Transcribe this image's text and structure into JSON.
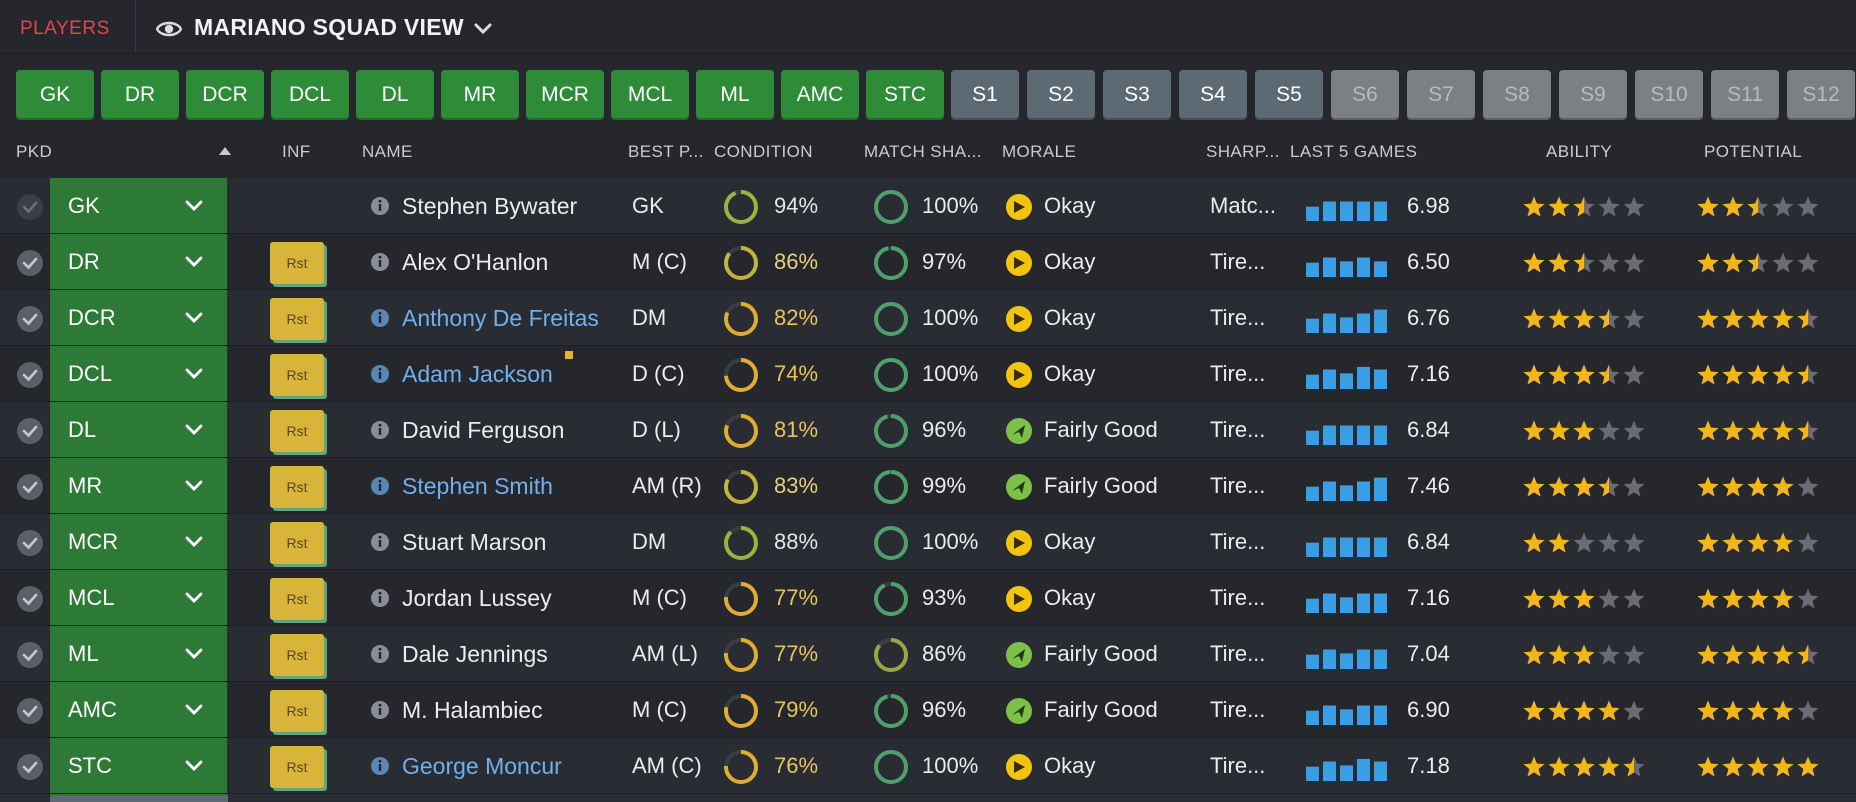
{
  "header": {
    "section": "PLAYERS",
    "view_title": "MARIANO SQUAD VIEW"
  },
  "position_buttons": [
    {
      "label": "GK",
      "state": "active"
    },
    {
      "label": "DR",
      "state": "active"
    },
    {
      "label": "DCR",
      "state": "active"
    },
    {
      "label": "DCL",
      "state": "active"
    },
    {
      "label": "DL",
      "state": "active"
    },
    {
      "label": "MR",
      "state": "active"
    },
    {
      "label": "MCR",
      "state": "active"
    },
    {
      "label": "MCL",
      "state": "active"
    },
    {
      "label": "ML",
      "state": "active"
    },
    {
      "label": "AMC",
      "state": "active"
    },
    {
      "label": "STC",
      "state": "active"
    },
    {
      "label": "S1",
      "state": "sub"
    },
    {
      "label": "S2",
      "state": "sub"
    },
    {
      "label": "S3",
      "state": "sub"
    },
    {
      "label": "S4",
      "state": "sub"
    },
    {
      "label": "S5",
      "state": "sub"
    },
    {
      "label": "S6",
      "state": "empty"
    },
    {
      "label": "S7",
      "state": "empty"
    },
    {
      "label": "S8",
      "state": "empty"
    },
    {
      "label": "S9",
      "state": "empty"
    },
    {
      "label": "S10",
      "state": "empty"
    },
    {
      "label": "S11",
      "state": "empty"
    },
    {
      "label": "S12",
      "state": "empty"
    }
  ],
  "columns": {
    "pkd": "PKD",
    "inf": "INF",
    "name": "NAME",
    "best_pos": "BEST P...",
    "condition": "CONDITION",
    "match_sharpness": "MATCH SHA...",
    "morale": "MORALE",
    "sharpness": "SHARP...",
    "last5": "LAST 5 GAMES",
    "ability": "ABILITY",
    "potential": "POTENTIAL"
  },
  "colors": {
    "accent_red": "#e0474c",
    "position_green": "#2e8c39",
    "sub_grey": "#5d6a74",
    "link_blue": "#6fb0ee",
    "star_gold": "#f3b51c",
    "bar_blue": "#3a9ee4"
  },
  "players": [
    {
      "pos": "GK",
      "inf": "",
      "name": "Stephen Bywater",
      "link": false,
      "best": "GK",
      "cond": "94%",
      "cond_val": 94,
      "ms": "100%",
      "ms_val": 100,
      "morale": "Okay",
      "morale_icon": "okay",
      "sharp": "Matc...",
      "bars": [
        0.55,
        0.75,
        0.75,
        0.75,
        0.75
      ],
      "rating": "6.98",
      "ability": 2.5,
      "potential": 2.5,
      "picked": false
    },
    {
      "pos": "DR",
      "inf": "Rst",
      "name": "Alex O'Hanlon",
      "link": false,
      "best": "M (C)",
      "cond": "86%",
      "cond_val": 86,
      "ms": "97%",
      "ms_val": 97,
      "morale": "Okay",
      "morale_icon": "okay",
      "sharp": "Tire...",
      "bars": [
        0.55,
        0.75,
        0.6,
        0.75,
        0.6
      ],
      "rating": "6.50",
      "ability": 2.5,
      "potential": 2.5,
      "picked": true
    },
    {
      "pos": "DCR",
      "inf": "Rst",
      "name": "Anthony De Freitas",
      "link": true,
      "best": "DM",
      "cond": "82%",
      "cond_val": 82,
      "ms": "100%",
      "ms_val": 100,
      "morale": "Okay",
      "morale_icon": "okay",
      "sharp": "Tire...",
      "bars": [
        0.55,
        0.75,
        0.6,
        0.75,
        0.9
      ],
      "rating": "6.76",
      "ability": 3.5,
      "potential": 4.5,
      "picked": true
    },
    {
      "pos": "DCL",
      "inf": "Rst",
      "name": "Adam Jackson",
      "link": true,
      "best": "D (C)",
      "cond": "74%",
      "cond_val": 74,
      "ms": "100%",
      "ms_val": 100,
      "morale": "Okay",
      "morale_icon": "okay",
      "sharp": "Tire...",
      "bars": [
        0.55,
        0.75,
        0.6,
        0.85,
        0.75
      ],
      "rating": "7.16",
      "ability": 3.5,
      "potential": 4.5,
      "picked": true
    },
    {
      "pos": "DL",
      "inf": "Rst",
      "name": "David Ferguson",
      "link": false,
      "best": "D (L)",
      "cond": "81%",
      "cond_val": 81,
      "ms": "96%",
      "ms_val": 96,
      "morale": "Fairly Good",
      "morale_icon": "fairly-good",
      "sharp": "Tire...",
      "bars": [
        0.55,
        0.75,
        0.75,
        0.75,
        0.75
      ],
      "rating": "6.84",
      "ability": 3,
      "potential": 4.5,
      "picked": true
    },
    {
      "pos": "MR",
      "inf": "Rst",
      "name": "Stephen Smith",
      "link": true,
      "best": "AM (R)",
      "cond": "83%",
      "cond_val": 83,
      "ms": "99%",
      "ms_val": 99,
      "morale": "Fairly Good",
      "morale_icon": "fairly-good",
      "sharp": "Tire...",
      "bars": [
        0.55,
        0.75,
        0.6,
        0.75,
        0.9
      ],
      "rating": "7.46",
      "ability": 3.5,
      "potential": 4,
      "picked": true
    },
    {
      "pos": "MCR",
      "inf": "Rst",
      "name": "Stuart Marson",
      "link": false,
      "best": "DM",
      "cond": "88%",
      "cond_val": 88,
      "ms": "100%",
      "ms_val": 100,
      "morale": "Okay",
      "morale_icon": "okay",
      "sharp": "Tire...",
      "bars": [
        0.55,
        0.75,
        0.75,
        0.75,
        0.75
      ],
      "rating": "6.84",
      "ability": 2,
      "potential": 4,
      "picked": true
    },
    {
      "pos": "MCL",
      "inf": "Rst",
      "name": "Jordan Lussey",
      "link": false,
      "best": "M (C)",
      "cond": "77%",
      "cond_val": 77,
      "ms": "93%",
      "ms_val": 93,
      "morale": "Okay",
      "morale_icon": "okay",
      "sharp": "Tire...",
      "bars": [
        0.55,
        0.75,
        0.6,
        0.75,
        0.75
      ],
      "rating": "7.16",
      "ability": 3,
      "potential": 4,
      "picked": true
    },
    {
      "pos": "ML",
      "inf": "Rst",
      "name": "Dale Jennings",
      "link": false,
      "best": "AM (L)",
      "cond": "77%",
      "cond_val": 77,
      "ms": "86%",
      "ms_val": 86,
      "morale": "Fairly Good",
      "morale_icon": "fairly-good",
      "sharp": "Tire...",
      "bars": [
        0.55,
        0.75,
        0.6,
        0.75,
        0.75
      ],
      "rating": "7.04",
      "ability": 3,
      "potential": 4.5,
      "picked": true
    },
    {
      "pos": "AMC",
      "inf": "Rst",
      "name": "M. Halambiec",
      "link": false,
      "best": "M (C)",
      "cond": "79%",
      "cond_val": 79,
      "ms": "96%",
      "ms_val": 96,
      "morale": "Fairly Good",
      "morale_icon": "fairly-good",
      "sharp": "Tire...",
      "bars": [
        0.55,
        0.75,
        0.6,
        0.75,
        0.75
      ],
      "rating": "6.90",
      "ability": 4,
      "potential": 4,
      "picked": true
    },
    {
      "pos": "STC",
      "inf": "Rst",
      "name": "George Moncur",
      "link": true,
      "best": "AM (C)",
      "cond": "76%",
      "cond_val": 76,
      "ms": "100%",
      "ms_val": 100,
      "morale": "Okay",
      "morale_icon": "okay",
      "sharp": "Tire...",
      "bars": [
        0.55,
        0.75,
        0.6,
        0.85,
        0.75
      ],
      "rating": "7.18",
      "ability": 4.5,
      "potential": 5,
      "picked": true
    }
  ]
}
